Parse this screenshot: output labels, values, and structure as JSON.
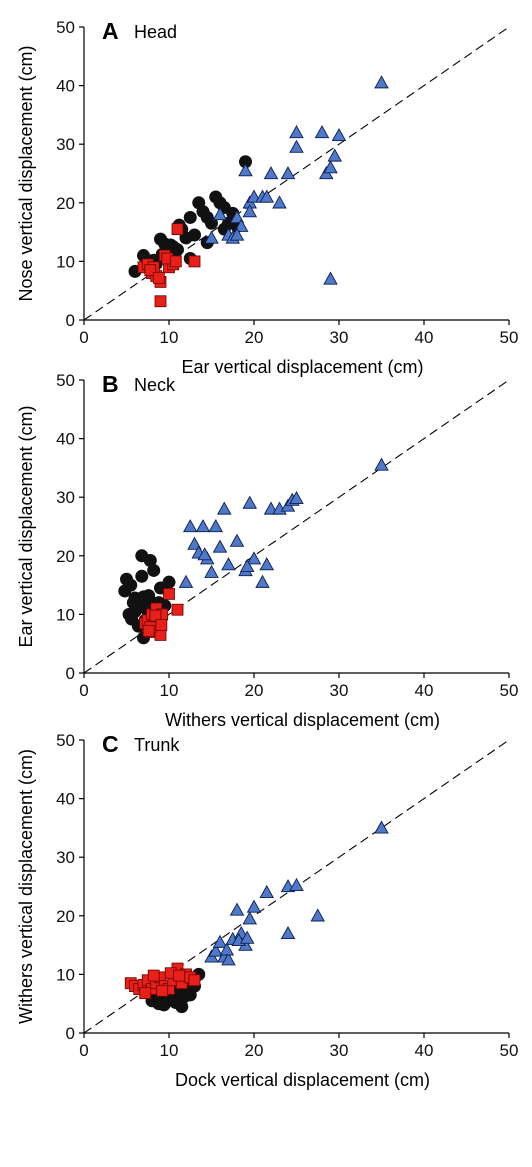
{
  "chart_data": [
    {
      "type": "scatter",
      "panel_letter": "A",
      "panel_title": "Head",
      "xlabel": "Ear vertical displacement (cm)",
      "ylabel": "Nose vertical displacement (cm)",
      "xlim": [
        0,
        50
      ],
      "ylim": [
        0,
        50
      ],
      "xticks": [
        "0",
        "10",
        "20",
        "30",
        "40",
        "50"
      ],
      "yticks": [
        "0",
        "10",
        "20",
        "30",
        "40",
        "50"
      ],
      "grid": false,
      "reference_line": {
        "style": "dashed",
        "from": [
          0,
          0
        ],
        "to": [
          50,
          50
        ]
      },
      "series": [
        {
          "marker": "circle",
          "color": "#111111",
          "x": [
            6,
            7,
            7.5,
            8,
            8.5,
            9,
            9.5,
            10,
            10.5,
            11,
            11.5,
            12,
            12.5,
            13,
            13.5,
            14,
            14.5,
            15,
            15.5,
            16,
            16.5,
            17,
            17.5,
            18,
            19,
            9.2,
            10.2,
            11.2,
            12.5,
            14.5,
            16.5,
            8.2
          ],
          "y": [
            8.3,
            11,
            10.2,
            9,
            9.6,
            13.8,
            13,
            11.5,
            12.5,
            12,
            15.5,
            14,
            17.5,
            14.5,
            20,
            18.5,
            17.5,
            16.5,
            21,
            20,
            19.2,
            16.5,
            18.2,
            16,
            27,
            11.2,
            12.8,
            16.2,
            10.5,
            13.2,
            15.5,
            10.2
          ]
        },
        {
          "marker": "square",
          "color": "#e8201a",
          "x": [
            7,
            7.5,
            8,
            8.5,
            9,
            9.5,
            10,
            10.5,
            11,
            13,
            9,
            8.2,
            9.8,
            10.8,
            7.8,
            8.8
          ],
          "y": [
            9,
            9.5,
            8,
            7.5,
            6.5,
            11,
            9,
            9.5,
            15.5,
            10,
            3.2,
            9,
            10.5,
            10,
            8.5,
            7.2
          ]
        },
        {
          "marker": "triangle",
          "color": "#4f78c8",
          "x": [
            15,
            16,
            17,
            17.5,
            18,
            18.5,
            19,
            19.5,
            20,
            21,
            22,
            23,
            24,
            25,
            25,
            28,
            28.5,
            29,
            29.5,
            30,
            35,
            29,
            18,
            19.5,
            21.5
          ],
          "y": [
            14,
            18,
            14.5,
            14,
            17.5,
            16,
            25.5,
            20,
            21,
            21,
            25,
            20,
            25,
            32,
            29.5,
            32,
            25,
            26,
            28,
            31.5,
            40.5,
            7,
            14.5,
            18.5,
            21
          ]
        }
      ]
    },
    {
      "type": "scatter",
      "panel_letter": "B",
      "panel_title": "Neck",
      "xlabel": "Withers vertical displacement (cm)",
      "ylabel": "Ear vertical displacement (cm)",
      "xlim": [
        0,
        50
      ],
      "ylim": [
        0,
        50
      ],
      "xticks": [
        "0",
        "10",
        "20",
        "30",
        "40",
        "50"
      ],
      "yticks": [
        "0",
        "10",
        "20",
        "30",
        "40",
        "50"
      ],
      "grid": false,
      "reference_line": {
        "style": "dashed",
        "from": [
          0,
          0
        ],
        "to": [
          50,
          50
        ]
      },
      "series": [
        {
          "marker": "circle",
          "color": "#111111",
          "x": [
            4.8,
            5,
            5.3,
            5.6,
            5.8,
            6,
            6.2,
            6.5,
            6.8,
            7,
            7.2,
            7.5,
            7.8,
            8,
            8.2,
            8.5,
            9,
            9.5,
            10,
            6.4,
            7,
            7.6,
            5.5,
            6.8,
            8.8,
            9.5,
            6,
            7.4
          ],
          "y": [
            14,
            16,
            10,
            9.2,
            12,
            10.5,
            11.2,
            12.5,
            20,
            13,
            9,
            11.5,
            19.2,
            12,
            17.5,
            10,
            14.5,
            11.5,
            15.5,
            8,
            6,
            13.2,
            15,
            16.5,
            12,
            14.5,
            12.8,
            10.8
          ]
        },
        {
          "marker": "square",
          "color": "#e8201a",
          "x": [
            7.2,
            7.5,
            7.8,
            8,
            8.2,
            8.5,
            8.8,
            9,
            9.2,
            10,
            11,
            7.8,
            8.4,
            9.1,
            7.6
          ],
          "y": [
            8.5,
            9,
            7,
            10,
            8,
            11,
            9.5,
            6.5,
            10,
            13.5,
            10.8,
            7.8,
            9.8,
            8.2,
            7.2
          ]
        },
        {
          "marker": "triangle",
          "color": "#4f78c8",
          "x": [
            12,
            12.5,
            13,
            13.5,
            14,
            14.5,
            15,
            15.5,
            16,
            16.5,
            17,
            18,
            19,
            19.5,
            20,
            21,
            21.5,
            22,
            23,
            24,
            24.5,
            25,
            35,
            14.2,
            19.2
          ],
          "y": [
            15.5,
            25,
            22,
            20.5,
            25,
            19.5,
            17.2,
            25,
            21.5,
            28,
            18.5,
            22.5,
            17.5,
            29,
            19.5,
            15.5,
            18.5,
            28,
            28,
            28.5,
            29.5,
            29.8,
            35.5,
            20.2,
            18.2
          ]
        }
      ]
    },
    {
      "type": "scatter",
      "panel_letter": "C",
      "panel_title": "Trunk",
      "xlabel": "Dock vertical displacement (cm)",
      "ylabel": "Withers vertical displacement (cm)",
      "xlim": [
        0,
        50
      ],
      "ylim": [
        0,
        50
      ],
      "xticks": [
        "0",
        "10",
        "20",
        "30",
        "40",
        "50"
      ],
      "yticks": [
        "0",
        "10",
        "20",
        "30",
        "40",
        "50"
      ],
      "grid": false,
      "reference_line": {
        "style": "dashed",
        "from": [
          0,
          0
        ],
        "to": [
          50,
          50
        ]
      },
      "series": [
        {
          "marker": "circle",
          "color": "#111111",
          "x": [
            8,
            8.5,
            9,
            9.5,
            10,
            10.5,
            11,
            11.5,
            12,
            12.5,
            13,
            13.5,
            9.2,
            10.2,
            11.2,
            8.8,
            9.8,
            10.8,
            11.8,
            12.2,
            9.4,
            10.6
          ],
          "y": [
            5.5,
            6,
            6.5,
            5,
            7,
            6.5,
            5.5,
            4.5,
            7.5,
            6.5,
            8,
            10,
            7.5,
            8,
            7,
            5,
            6,
            5.2,
            6.2,
            9,
            4.8,
            6.8
          ]
        },
        {
          "marker": "square",
          "color": "#e8201a",
          "x": [
            5.5,
            6,
            6.5,
            7,
            7.5,
            8,
            8.5,
            9,
            9.5,
            10,
            10.5,
            11,
            11.5,
            12,
            12.5,
            13,
            8.2,
            9.2,
            10.2,
            11.2,
            7.2
          ],
          "y": [
            8.5,
            8,
            7.5,
            8.2,
            9,
            7.5,
            8.5,
            9.5,
            8,
            7.5,
            9,
            11,
            8.5,
            10,
            9.5,
            9,
            9.8,
            7.2,
            10.2,
            9.8,
            6.8
          ]
        },
        {
          "marker": "triangle",
          "color": "#4f78c8",
          "x": [
            15,
            15.5,
            16,
            16.5,
            17,
            17.5,
            18,
            18.5,
            19,
            19.5,
            20,
            21.5,
            24,
            24,
            25,
            27.5,
            35,
            16.8,
            18.2,
            19.2
          ],
          "y": [
            13,
            14,
            15.5,
            13,
            12.5,
            16,
            21,
            17,
            15,
            19.5,
            21.5,
            24,
            25,
            17,
            25.2,
            20,
            35,
            14.2,
            15.8,
            16.2
          ]
        }
      ]
    }
  ]
}
